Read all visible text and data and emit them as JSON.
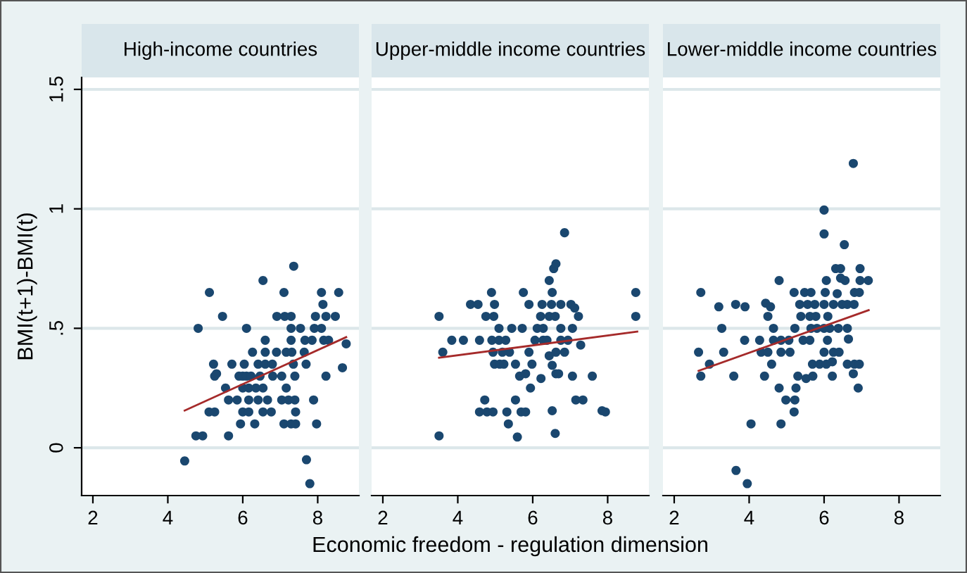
{
  "chart_data": [
    {
      "type": "scatter",
      "title": "High-income countries",
      "ylabel": "BMI(t+1)-BMI(t)",
      "grid": "y",
      "xlim": [
        1.7,
        9.1
      ],
      "ylim": [
        -0.2,
        1.55
      ],
      "xticks": [
        2,
        4,
        6,
        8
      ],
      "yticks": [
        0,
        {
          "value": 0.5,
          "label": ".5"
        },
        1,
        1.5
      ],
      "series": [
        {
          "marker": "circle",
          "color": "#1a476f",
          "x": [
            4.45,
            4.75,
            4.93,
            4.81,
            5.11,
            5.22,
            5.25,
            5.3,
            5.1,
            5.25,
            5.46,
            5.54,
            5.62,
            5.62,
            5.71,
            5.9,
            6.0,
            6.1,
            6.22,
            5.94,
            6.0,
            6.16,
            5.85,
            6.16,
            6.41,
            6.66,
            6.04,
            6.1,
            6.0,
            6.16,
            6.35,
            6.54,
            6.26,
            6.32,
            6.41,
            6.6,
            6.79,
            6.54,
            6.6,
            6.6,
            6.46,
            6.8,
            6.54,
            6.76,
            6.9,
            6.91,
            7.12,
            7.29,
            7.04,
            7.04,
            7.22,
            7.39,
            7.1,
            7.16,
            7.31,
            7.1,
            7.29,
            7.41,
            7.16,
            7.29,
            7.29,
            7.54,
            7.35,
            7.36,
            7.39,
            7.41,
            7.64,
            7.66,
            7.85,
            7.69,
            7.7,
            7.79,
            7.89,
            7.91,
            8.1,
            7.94,
            7.97,
            8.1,
            8.14,
            8.16,
            8.29,
            8.22,
            8.22,
            8.47,
            8.56,
            8.66,
            8.76
          ],
          "values": [
            -0.055,
            0.05,
            0.05,
            0.5,
            0.65,
            0.35,
            0.3,
            0.31,
            0.15,
            0.15,
            0.55,
            0.25,
            0.05,
            0.2,
            0.35,
            0.3,
            0.3,
            0.3,
            0.3,
            0.1,
            0.15,
            0.15,
            0.2,
            0.2,
            0.2,
            0.2,
            0.35,
            0.5,
            0.25,
            0.25,
            0.25,
            0.25,
            0.4,
            0.1,
            0.35,
            0.35,
            0.35,
            0.7,
            0.45,
            0.4,
            0.3,
            0.3,
            0.15,
            0.15,
            0.4,
            0.55,
            0.55,
            0.55,
            0.3,
            0.2,
            0.2,
            0.2,
            0.65,
            0.4,
            0.4,
            0.1,
            0.1,
            0.1,
            0.25,
            0.45,
            0.5,
            0.5,
            0.35,
            0.76,
            0.3,
            0.15,
            0.4,
            0.45,
            0.45,
            0.35,
            -0.05,
            -0.15,
            0.2,
            0.5,
            0.5,
            0.55,
            0.1,
            0.65,
            0.6,
            0.45,
            0.45,
            0.3,
            0.55,
            0.55,
            0.65,
            0.335,
            0.435
          ]
        },
        {
          "type": "line",
          "marker": "none",
          "color": "#a52a2a",
          "x": [
            4.45,
            8.76
          ],
          "values": [
            0.156,
            0.463
          ]
        }
      ]
    },
    {
      "type": "scatter",
      "title": "Upper-middle income countries",
      "xlabel": "Economic freedom - regulation dimension",
      "grid": "y",
      "tick_labels": "x",
      "xlim": [
        1.7,
        9.1
      ],
      "ylim": [
        -0.2,
        1.55
      ],
      "xticks": [
        2,
        4,
        6,
        8
      ],
      "yticks": [
        0,
        0.5,
        1,
        1.5
      ],
      "series": [
        {
          "marker": "circle",
          "color": "#1a476f",
          "x": [
            3.5,
            3.5,
            3.6,
            3.84,
            4.15,
            4.34,
            4.54,
            4.58,
            4.58,
            4.72,
            4.78,
            4.94,
            4.75,
            4.96,
            4.9,
            4.98,
            4.91,
            5.1,
            5.28,
            4.94,
            5.19,
            5.38,
            4.98,
            5.12,
            5.23,
            5.1,
            5.44,
            5.72,
            5.31,
            5.35,
            5.54,
            5.54,
            5.59,
            5.65,
            5.81,
            5.69,
            5.81,
            5.75,
            5.9,
            5.9,
            5.94,
            5.98,
            6.06,
            6.28,
            6.12,
            6.28,
            6.21,
            6.44,
            6.6,
            6.22,
            6.25,
            6.5,
            6.75,
            6.38,
            6.44,
            6.62,
            6.44,
            6.52,
            6.52,
            6.52,
            6.62,
            6.56,
            6.62,
            6.6,
            6.69,
            6.75,
            6.75,
            6.94,
            6.85,
            6.85,
            7.02,
            7.12,
            7.06,
            7.06,
            7.22,
            7.15,
            7.34,
            7.28,
            7.59,
            7.85,
            7.94,
            8.75,
            8.75
          ],
          "values": [
            0.05,
            0.55,
            0.4,
            0.45,
            0.45,
            0.6,
            0.6,
            0.45,
            0.15,
            0.2,
            0.15,
            0.15,
            0.55,
            0.55,
            0.65,
            0.6,
            0.45,
            0.45,
            0.45,
            0.4,
            0.4,
            0.4,
            0.35,
            0.35,
            0.35,
            0.5,
            0.5,
            0.5,
            0.15,
            0.1,
            0.2,
            0.35,
            0.045,
            0.3,
            0.31,
            0.15,
            0.15,
            0.65,
            0.6,
            0.4,
            0.25,
            0.35,
            0.45,
            0.45,
            0.5,
            0.5,
            0.55,
            0.55,
            0.55,
            0.29,
            0.6,
            0.6,
            0.6,
            0.45,
            0.385,
            0.4,
            0.7,
            0.65,
            0.155,
            0.345,
            0.31,
            0.75,
            0.77,
            0.06,
            0.31,
            0.5,
            0.45,
            0.45,
            0.4,
            0.9,
            0.6,
            0.585,
            0.5,
            0.3,
            0.55,
            0.2,
            0.2,
            0.43,
            0.3,
            0.155,
            0.15,
            0.65,
            0.55
          ]
        },
        {
          "type": "line",
          "marker": "none",
          "color": "#a52a2a",
          "x": [
            3.5,
            8.79
          ],
          "values": [
            0.377,
            0.486
          ]
        }
      ]
    },
    {
      "type": "scatter",
      "title": "Lower-middle income countries",
      "grid": "y",
      "tick_labels": "x",
      "xlim": [
        1.7,
        9.1
      ],
      "ylim": [
        -0.2,
        1.55
      ],
      "xticks": [
        2,
        4,
        6,
        8
      ],
      "yticks": [
        0,
        0.5,
        1,
        1.5
      ],
      "series": [
        {
          "marker": "circle",
          "color": "#1a476f",
          "x": [
            2.65,
            2.71,
            2.71,
            2.94,
            3.19,
            3.27,
            3.32,
            3.59,
            3.64,
            3.89,
            3.65,
            3.88,
            3.95,
            4.05,
            4.28,
            4.32,
            4.5,
            4.41,
            4.44,
            4.57,
            4.5,
            4.6,
            4.65,
            4.65,
            4.85,
            5.06,
            4.8,
            4.8,
            4.85,
            5.09,
            4.85,
            4.98,
            5.22,
            5.2,
            5.2,
            5.48,
            5.22,
            5.25,
            5.3,
            5.52,
            5.7,
            5.35,
            5.56,
            5.75,
            5.38,
            5.62,
            5.78,
            5.44,
            5.62,
            5.65,
            5.65,
            5.81,
            5.69,
            5.88,
            6.0,
            6.25,
            6.0,
            6.15,
            6.0,
            6.25,
            6.4,
            6.0,
            6.0,
            6.03,
            6.06,
            6.06,
            6.22,
            6.09,
            6.1,
            6.22,
            6.31,
            6.44,
            6.35,
            6.38,
            6.62,
            6.44,
            6.56,
            6.48,
            6.62,
            6.54,
            6.62,
            6.81,
            6.94,
            6.65,
            6.78,
            6.78,
            6.8,
            6.81,
            6.94,
            6.91,
            6.96,
            6.96,
            7.18
          ],
          "values": [
            0.4,
            0.65,
            0.3,
            0.35,
            0.59,
            0.5,
            0.4,
            0.3,
            0.6,
            0.59,
            -0.095,
            0.45,
            -0.15,
            0.1,
            0.45,
            0.4,
            0.4,
            0.3,
            0.605,
            0.59,
            0.55,
            0.35,
            0.5,
            0.45,
            0.45,
            0.45,
            0.7,
            0.25,
            0.4,
            0.4,
            0.1,
            0.2,
            0.2,
            0.15,
            0.65,
            0.65,
            0.5,
            0.25,
            0.3,
            0.29,
            0.3,
            0.6,
            0.6,
            0.6,
            0.55,
            0.55,
            0.55,
            0.45,
            0.45,
            0.65,
            0.5,
            0.5,
            0.35,
            0.35,
            0.6,
            0.6,
            0.5,
            0.5,
            0.4,
            0.4,
            0.4,
            0.995,
            0.895,
            0.65,
            0.7,
            0.35,
            0.36,
            0.45,
            0.55,
            0.3,
            0.75,
            0.75,
            0.645,
            0.5,
            0.5,
            0.71,
            0.7,
            0.6,
            0.6,
            0.85,
            0.35,
            0.35,
            0.35,
            0.455,
            1.19,
            0.31,
            0.6,
            0.65,
            0.65,
            0.25,
            0.75,
            0.7,
            0.7
          ]
        },
        {
          "type": "line",
          "marker": "none",
          "color": "#a52a2a",
          "x": [
            2.65,
            7.19
          ],
          "values": [
            0.322,
            0.576
          ]
        }
      ]
    }
  ]
}
